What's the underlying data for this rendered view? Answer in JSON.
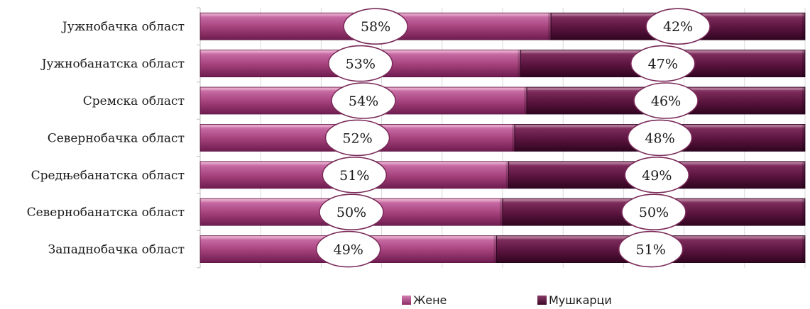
{
  "chart_data": {
    "type": "bar",
    "stacked": true,
    "orientation": "horizontal",
    "percent": true,
    "categories": [
      "Јужнобачка област",
      "Јужнобанатска област",
      "Сремска област",
      "Севернобачка област",
      "Средњебанатска област",
      "Севернобанатска област",
      "Западнобачка област"
    ],
    "series": [
      {
        "name": "Жене",
        "color": "#a8427c",
        "values": [
          58,
          53,
          54,
          52,
          51,
          50,
          49
        ]
      },
      {
        "name": "Мушкарци",
        "color": "#5c1540",
        "values": [
          42,
          47,
          46,
          48,
          49,
          50,
          51
        ]
      }
    ],
    "xlim": [
      0,
      100
    ],
    "data_labels": true,
    "data_label_suffix": "%",
    "legend": "bottom"
  }
}
